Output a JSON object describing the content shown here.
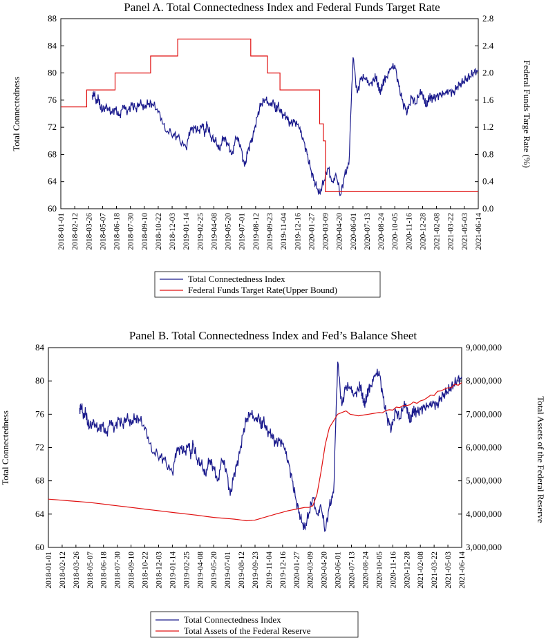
{
  "x_dates": [
    "2018-01-01",
    "2018-02-12",
    "2018-03-26",
    "2018-05-07",
    "2018-06-18",
    "2018-07-30",
    "2018-09-10",
    "2018-10-22",
    "2018-12-03",
    "2019-01-14",
    "2019-02-25",
    "2019-04-08",
    "2019-05-20",
    "2019-07-01",
    "2019-08-12",
    "2019-09-23",
    "2019-11-04",
    "2019-12-16",
    "2020-01-27",
    "2020-03-09",
    "2020-04-20",
    "2020-06-01",
    "2020-07-13",
    "2020-08-24",
    "2020-10-05",
    "2020-11-16",
    "2020-12-28",
    "2021-02-08",
    "2021-03-22",
    "2021-05-03",
    "2021-06-14"
  ],
  "colors": {
    "tci": "#1a1a8c",
    "red": "#e01010"
  },
  "chart_data": [
    {
      "type": "line",
      "title": "Panel A. Total Connectedness Index and Federal Funds Target Rate",
      "ylabel_left": "Total Connectedness",
      "ylabel_right": "Federal Funds Targe Rate (%)",
      "ylim_left": [
        60,
        88
      ],
      "ylim_right": [
        0.0,
        2.8
      ],
      "yticks_left": [
        "60",
        "64",
        "68",
        "72",
        "76",
        "80",
        "84",
        "88"
      ],
      "yticks_right": [
        "0.0",
        "0.4",
        "0.8",
        "1.2",
        "1.6",
        "2.0",
        "2.4",
        "2.8"
      ],
      "series": [
        {
          "name": "Total Connectedness Index",
          "axis": "left",
          "x": [
            0.075,
            0.08,
            0.085,
            0.09,
            0.095,
            0.1,
            0.11,
            0.12,
            0.13,
            0.14,
            0.15,
            0.16,
            0.17,
            0.18,
            0.19,
            0.2,
            0.21,
            0.22,
            0.235,
            0.25,
            0.27,
            0.28,
            0.3,
            0.31,
            0.32,
            0.33,
            0.34,
            0.345,
            0.35,
            0.36,
            0.37,
            0.38,
            0.39,
            0.4,
            0.41,
            0.42,
            0.43,
            0.44,
            0.45,
            0.46,
            0.47,
            0.48,
            0.49,
            0.5,
            0.51,
            0.515,
            0.52,
            0.53,
            0.54,
            0.55,
            0.56,
            0.57,
            0.58,
            0.59,
            0.6,
            0.61,
            0.62,
            0.63,
            0.64,
            0.65,
            0.66,
            0.67,
            0.68,
            0.69,
            0.7,
            0.71,
            0.72,
            0.73,
            0.74,
            0.75,
            0.755,
            0.76,
            0.765,
            0.77,
            0.775,
            0.78,
            0.79,
            0.8,
            0.81,
            0.82,
            0.83,
            0.84,
            0.85,
            0.86,
            0.865,
            0.87,
            0.875,
            0.88,
            0.885,
            0.89,
            0.9,
            0.91,
            0.92,
            0.93,
            0.94,
            0.95,
            0.96,
            0.97,
            0.98,
            0.99,
            1.0
          ],
          "values": [
            76.6,
            76.9,
            75.8,
            76.2,
            75.0,
            74.4,
            75.2,
            74.0,
            74.8,
            73.7,
            75.0,
            74.4,
            75.3,
            74.8,
            75.5,
            75.0,
            75.5,
            75.3,
            74.4,
            71.5,
            71.0,
            70.5,
            69.0,
            71.5,
            72.0,
            71.5,
            72.3,
            71.0,
            72.5,
            70.5,
            70.0,
            68.8,
            70.5,
            69.5,
            68.0,
            70.5,
            69.5,
            66.2,
            69.0,
            70.5,
            73.5,
            75.5,
            76.0,
            75.5,
            75.5,
            74.5,
            75.2,
            74.0,
            73.5,
            72.5,
            73.0,
            72.0,
            70.5,
            68.0,
            65.5,
            63.5,
            62.3,
            64.0,
            66.0,
            64.0,
            64.8,
            62.0,
            65.0,
            66.5,
            82.3,
            77.0,
            79.5,
            79.0,
            78.5,
            78.8,
            79.5,
            78.0,
            77.2,
            78.0,
            79.0,
            79.5,
            80.5,
            81.2,
            78.0,
            75.5,
            74.2,
            76.5,
            75.5,
            77.0,
            77.3,
            76.0,
            75.2,
            76.0,
            76.5,
            76.2,
            76.5,
            77.0,
            76.8,
            77.5,
            77.0,
            78.0,
            78.5,
            79.0,
            79.5,
            80.0,
            80.5
          ]
        },
        {
          "name": "Federal Funds Target Rate(Upper Bound)",
          "axis": "right",
          "x": [
            0.0,
            0.062,
            0.062,
            0.13,
            0.13,
            0.215,
            0.215,
            0.28,
            0.28,
            0.455,
            0.455,
            0.495,
            0.495,
            0.525,
            0.525,
            0.62,
            0.62,
            0.629,
            0.629,
            0.634,
            0.634,
            1.0
          ],
          "values": [
            1.5,
            1.5,
            1.75,
            1.75,
            2.0,
            2.0,
            2.25,
            2.25,
            2.5,
            2.5,
            2.25,
            2.25,
            2.0,
            2.0,
            1.75,
            1.75,
            1.25,
            1.25,
            1.0,
            1.0,
            0.25,
            0.25
          ]
        }
      ],
      "legend": [
        "Total Connectedness Index",
        "Federal Funds Target Rate(Upper Bound)"
      ]
    },
    {
      "type": "line",
      "title": "Panel B. Total Connectedness Index and Fed’s Balance Sheet",
      "ylabel_left": "Total Connectedness",
      "ylabel_right": "Total Assets of the Federal Reserve",
      "ylim_left": [
        60,
        84
      ],
      "ylim_right": [
        3000000,
        9000000
      ],
      "yticks_left": [
        "60",
        "64",
        "68",
        "72",
        "76",
        "80",
        "84"
      ],
      "yticks_right": [
        "3,000,000",
        "4,000,000",
        "5,000,000",
        "6,000,000",
        "7,000,000",
        "8,000,000",
        "9,000,000"
      ],
      "series": [
        {
          "name": "Total Connectedness Index",
          "axis": "left",
          "source": "same as Panel A"
        },
        {
          "name": "Total Assets of the Federal Reserve",
          "axis": "right",
          "x": [
            0.0,
            0.1,
            0.2,
            0.3,
            0.35,
            0.4,
            0.45,
            0.48,
            0.5,
            0.55,
            0.58,
            0.6,
            0.62,
            0.63,
            0.64,
            0.65,
            0.66,
            0.67,
            0.68,
            0.7,
            0.72,
            0.73,
            0.75,
            0.8,
            0.85,
            0.9,
            0.95,
            1.0
          ],
          "values": [
            4450000,
            4350000,
            4200000,
            4050000,
            3980000,
            3900000,
            3850000,
            3800000,
            3820000,
            4000000,
            4100000,
            4150000,
            4200000,
            4200000,
            4250000,
            4600000,
            5300000,
            6100000,
            6600000,
            7000000,
            7100000,
            7000000,
            6950000,
            7050000,
            7200000,
            7400000,
            7700000,
            7950000
          ]
        }
      ],
      "legend": [
        "Total Connectedness Index",
        "Total Assets of the Federal Reserve"
      ]
    }
  ]
}
